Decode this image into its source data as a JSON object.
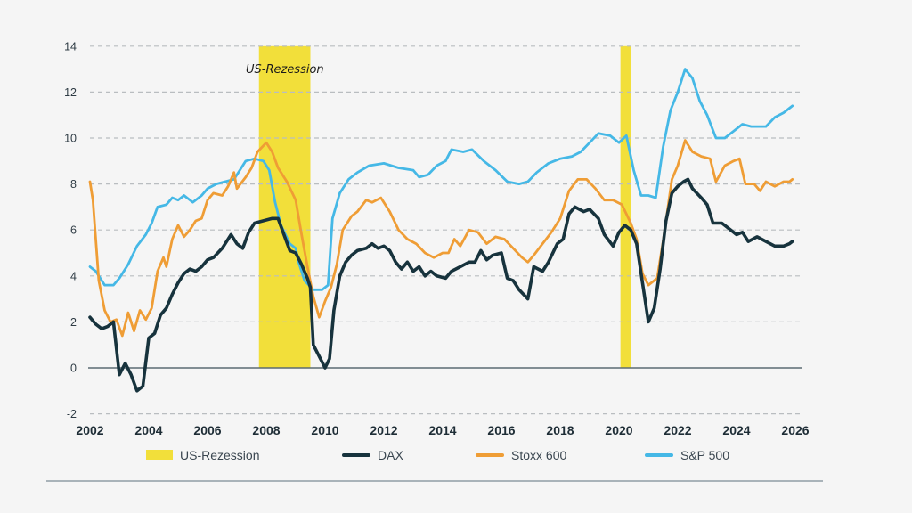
{
  "chart_data": {
    "type": "line",
    "title": "",
    "xlabel": "",
    "ylabel": "",
    "xlim": [
      2002,
      2026
    ],
    "ylim": [
      -2,
      14
    ],
    "x_ticks": [
      "2002",
      "2004",
      "2006",
      "2008",
      "2010",
      "2012",
      "2014",
      "2016",
      "2018",
      "2020",
      "2022",
      "2024",
      "2026"
    ],
    "y_ticks": [
      "-2",
      "0",
      "2",
      "4",
      "6",
      "8",
      "10",
      "12",
      "14"
    ],
    "grid": "horizontal-dashed",
    "annotation": "US-Rezession",
    "recessions": [
      {
        "start": 2007.75,
        "end": 2009.5
      },
      {
        "start": 2020.05,
        "end": 2020.4
      }
    ],
    "legend": {
      "placement": "bottom",
      "entries": [
        {
          "label": "US-Rezession",
          "color": "#f2df3a",
          "kind": "area"
        },
        {
          "label": "DAX",
          "color": "#17333d",
          "kind": "line"
        },
        {
          "label": "Stoxx 600",
          "color": "#ef9d35",
          "kind": "line"
        },
        {
          "label": "S&P 500",
          "color": "#45b8e6",
          "kind": "line"
        }
      ]
    },
    "series": [
      {
        "name": "S&P 500",
        "color": "#45b8e6",
        "points": [
          [
            2002.0,
            4.4
          ],
          [
            2002.2,
            4.2
          ],
          [
            2002.5,
            3.6
          ],
          [
            2002.8,
            3.6
          ],
          [
            2003.0,
            3.9
          ],
          [
            2003.3,
            4.5
          ],
          [
            2003.6,
            5.3
          ],
          [
            2003.9,
            5.8
          ],
          [
            2004.1,
            6.3
          ],
          [
            2004.3,
            7.0
          ],
          [
            2004.6,
            7.1
          ],
          [
            2004.8,
            7.4
          ],
          [
            2005.0,
            7.3
          ],
          [
            2005.2,
            7.5
          ],
          [
            2005.5,
            7.2
          ],
          [
            2005.8,
            7.5
          ],
          [
            2006.0,
            7.8
          ],
          [
            2006.3,
            8.0
          ],
          [
            2006.6,
            8.1
          ],
          [
            2006.9,
            8.2
          ],
          [
            2007.1,
            8.6
          ],
          [
            2007.3,
            9.0
          ],
          [
            2007.6,
            9.1
          ],
          [
            2007.9,
            9.0
          ],
          [
            2008.1,
            8.6
          ],
          [
            2008.3,
            7.2
          ],
          [
            2008.5,
            6.2
          ],
          [
            2008.8,
            5.4
          ],
          [
            2009.0,
            5.2
          ],
          [
            2009.1,
            4.6
          ],
          [
            2009.3,
            3.8
          ],
          [
            2009.6,
            3.4
          ],
          [
            2009.9,
            3.4
          ],
          [
            2010.1,
            3.6
          ],
          [
            2010.25,
            6.5
          ],
          [
            2010.5,
            7.6
          ],
          [
            2010.8,
            8.2
          ],
          [
            2011.1,
            8.5
          ],
          [
            2011.5,
            8.8
          ],
          [
            2012.0,
            8.9
          ],
          [
            2012.5,
            8.7
          ],
          [
            2013.0,
            8.6
          ],
          [
            2013.2,
            8.3
          ],
          [
            2013.5,
            8.4
          ],
          [
            2013.8,
            8.8
          ],
          [
            2014.1,
            9.0
          ],
          [
            2014.3,
            9.5
          ],
          [
            2014.7,
            9.4
          ],
          [
            2015.0,
            9.5
          ],
          [
            2015.4,
            9.0
          ],
          [
            2015.8,
            8.6
          ],
          [
            2016.2,
            8.1
          ],
          [
            2016.6,
            8.0
          ],
          [
            2016.9,
            8.1
          ],
          [
            2017.2,
            8.5
          ],
          [
            2017.6,
            8.9
          ],
          [
            2018.0,
            9.1
          ],
          [
            2018.4,
            9.2
          ],
          [
            2018.7,
            9.4
          ],
          [
            2019.0,
            9.8
          ],
          [
            2019.3,
            10.2
          ],
          [
            2019.7,
            10.1
          ],
          [
            2020.0,
            9.8
          ],
          [
            2020.25,
            10.1
          ],
          [
            2020.5,
            8.6
          ],
          [
            2020.75,
            7.5
          ],
          [
            2021.0,
            7.5
          ],
          [
            2021.25,
            7.4
          ],
          [
            2021.5,
            9.6
          ],
          [
            2021.75,
            11.2
          ],
          [
            2022.0,
            12.0
          ],
          [
            2022.25,
            13.0
          ],
          [
            2022.5,
            12.6
          ],
          [
            2022.75,
            11.6
          ],
          [
            2023.0,
            11.0
          ],
          [
            2023.3,
            10.0
          ],
          [
            2023.6,
            10.0
          ],
          [
            2023.9,
            10.3
          ],
          [
            2024.2,
            10.6
          ],
          [
            2024.5,
            10.5
          ],
          [
            2025.0,
            10.5
          ],
          [
            2025.3,
            10.9
          ],
          [
            2025.6,
            11.1
          ],
          [
            2025.9,
            11.4
          ]
        ]
      },
      {
        "name": "Stoxx 600",
        "color": "#ef9d35",
        "points": [
          [
            2002.0,
            8.1
          ],
          [
            2002.1,
            7.3
          ],
          [
            2002.3,
            3.8
          ],
          [
            2002.5,
            2.5
          ],
          [
            2002.7,
            2.0
          ],
          [
            2002.9,
            2.1
          ],
          [
            2003.1,
            1.4
          ],
          [
            2003.3,
            2.4
          ],
          [
            2003.5,
            1.6
          ],
          [
            2003.7,
            2.5
          ],
          [
            2003.9,
            2.1
          ],
          [
            2004.1,
            2.6
          ],
          [
            2004.3,
            4.2
          ],
          [
            2004.5,
            4.8
          ],
          [
            2004.6,
            4.4
          ],
          [
            2004.8,
            5.6
          ],
          [
            2005.0,
            6.2
          ],
          [
            2005.2,
            5.7
          ],
          [
            2005.4,
            6.0
          ],
          [
            2005.6,
            6.4
          ],
          [
            2005.8,
            6.5
          ],
          [
            2006.0,
            7.3
          ],
          [
            2006.2,
            7.6
          ],
          [
            2006.5,
            7.5
          ],
          [
            2006.7,
            7.9
          ],
          [
            2006.9,
            8.5
          ],
          [
            2007.0,
            7.8
          ],
          [
            2007.3,
            8.3
          ],
          [
            2007.5,
            8.7
          ],
          [
            2007.7,
            9.4
          ],
          [
            2008.0,
            9.8
          ],
          [
            2008.2,
            9.4
          ],
          [
            2008.4,
            8.7
          ],
          [
            2008.7,
            8.1
          ],
          [
            2009.0,
            7.3
          ],
          [
            2009.2,
            5.8
          ],
          [
            2009.4,
            4.4
          ],
          [
            2009.6,
            3.1
          ],
          [
            2009.8,
            2.2
          ],
          [
            2010.0,
            2.9
          ],
          [
            2010.2,
            3.5
          ],
          [
            2010.4,
            4.5
          ],
          [
            2010.6,
            6.0
          ],
          [
            2010.9,
            6.6
          ],
          [
            2011.1,
            6.8
          ],
          [
            2011.4,
            7.3
          ],
          [
            2011.6,
            7.2
          ],
          [
            2011.9,
            7.4
          ],
          [
            2012.2,
            6.8
          ],
          [
            2012.5,
            6.0
          ],
          [
            2012.8,
            5.6
          ],
          [
            2013.1,
            5.4
          ],
          [
            2013.4,
            5.0
          ],
          [
            2013.7,
            4.8
          ],
          [
            2014.0,
            5.0
          ],
          [
            2014.2,
            5.0
          ],
          [
            2014.4,
            5.6
          ],
          [
            2014.6,
            5.3
          ],
          [
            2014.9,
            6.0
          ],
          [
            2015.2,
            5.9
          ],
          [
            2015.5,
            5.4
          ],
          [
            2015.8,
            5.7
          ],
          [
            2016.1,
            5.6
          ],
          [
            2016.4,
            5.2
          ],
          [
            2016.7,
            4.8
          ],
          [
            2016.9,
            4.6
          ],
          [
            2017.1,
            4.9
          ],
          [
            2017.4,
            5.4
          ],
          [
            2017.7,
            5.9
          ],
          [
            2018.0,
            6.5
          ],
          [
            2018.3,
            7.7
          ],
          [
            2018.6,
            8.2
          ],
          [
            2018.9,
            8.2
          ],
          [
            2019.2,
            7.8
          ],
          [
            2019.5,
            7.3
          ],
          [
            2019.8,
            7.3
          ],
          [
            2020.1,
            7.1
          ],
          [
            2020.4,
            6.3
          ],
          [
            2020.6,
            5.6
          ],
          [
            2020.8,
            4.1
          ],
          [
            2021.0,
            3.6
          ],
          [
            2021.3,
            3.9
          ],
          [
            2021.5,
            5.5
          ],
          [
            2021.8,
            8.2
          ],
          [
            2022.0,
            8.8
          ],
          [
            2022.25,
            9.9
          ],
          [
            2022.5,
            9.4
          ],
          [
            2022.8,
            9.2
          ],
          [
            2023.1,
            9.1
          ],
          [
            2023.3,
            8.1
          ],
          [
            2023.6,
            8.8
          ],
          [
            2023.9,
            9.0
          ],
          [
            2024.1,
            9.1
          ],
          [
            2024.3,
            8.0
          ],
          [
            2024.6,
            8.0
          ],
          [
            2024.8,
            7.7
          ],
          [
            2025.0,
            8.1
          ],
          [
            2025.3,
            7.9
          ],
          [
            2025.6,
            8.1
          ],
          [
            2025.8,
            8.1
          ],
          [
            2025.9,
            8.2
          ]
        ]
      },
      {
        "name": "DAX",
        "color": "#17333d",
        "points": [
          [
            2002.0,
            2.2
          ],
          [
            2002.2,
            1.9
          ],
          [
            2002.4,
            1.7
          ],
          [
            2002.6,
            1.8
          ],
          [
            2002.8,
            2.0
          ],
          [
            2003.0,
            -0.3
          ],
          [
            2003.2,
            0.2
          ],
          [
            2003.4,
            -0.3
          ],
          [
            2003.6,
            -1.0
          ],
          [
            2003.8,
            -0.8
          ],
          [
            2004.0,
            1.3
          ],
          [
            2004.2,
            1.5
          ],
          [
            2004.4,
            2.3
          ],
          [
            2004.6,
            2.6
          ],
          [
            2004.8,
            3.2
          ],
          [
            2005.0,
            3.7
          ],
          [
            2005.2,
            4.1
          ],
          [
            2005.4,
            4.3
          ],
          [
            2005.6,
            4.2
          ],
          [
            2005.8,
            4.4
          ],
          [
            2006.0,
            4.7
          ],
          [
            2006.2,
            4.8
          ],
          [
            2006.5,
            5.2
          ],
          [
            2006.8,
            5.8
          ],
          [
            2007.0,
            5.4
          ],
          [
            2007.2,
            5.2
          ],
          [
            2007.4,
            5.9
          ],
          [
            2007.6,
            6.3
          ],
          [
            2007.9,
            6.4
          ],
          [
            2008.2,
            6.5
          ],
          [
            2008.4,
            6.5
          ],
          [
            2008.6,
            5.8
          ],
          [
            2008.8,
            5.1
          ],
          [
            2009.0,
            5.0
          ],
          [
            2009.2,
            4.5
          ],
          [
            2009.4,
            3.9
          ],
          [
            2009.5,
            3.5
          ],
          [
            2009.6,
            1.0
          ],
          [
            2009.8,
            0.5
          ],
          [
            2010.0,
            0.0
          ],
          [
            2010.15,
            0.4
          ],
          [
            2010.3,
            2.5
          ],
          [
            2010.5,
            4.0
          ],
          [
            2010.7,
            4.6
          ],
          [
            2010.9,
            4.9
          ],
          [
            2011.1,
            5.1
          ],
          [
            2011.4,
            5.2
          ],
          [
            2011.6,
            5.4
          ],
          [
            2011.8,
            5.2
          ],
          [
            2012.0,
            5.3
          ],
          [
            2012.2,
            5.1
          ],
          [
            2012.4,
            4.6
          ],
          [
            2012.6,
            4.3
          ],
          [
            2012.8,
            4.6
          ],
          [
            2013.0,
            4.2
          ],
          [
            2013.2,
            4.4
          ],
          [
            2013.4,
            4.0
          ],
          [
            2013.6,
            4.2
          ],
          [
            2013.8,
            4.0
          ],
          [
            2014.1,
            3.9
          ],
          [
            2014.3,
            4.2
          ],
          [
            2014.6,
            4.4
          ],
          [
            2014.9,
            4.6
          ],
          [
            2015.1,
            4.6
          ],
          [
            2015.3,
            5.1
          ],
          [
            2015.5,
            4.7
          ],
          [
            2015.7,
            4.9
          ],
          [
            2016.0,
            5.0
          ],
          [
            2016.2,
            3.9
          ],
          [
            2016.4,
            3.8
          ],
          [
            2016.6,
            3.4
          ],
          [
            2016.9,
            3.0
          ],
          [
            2017.1,
            4.4
          ],
          [
            2017.4,
            4.2
          ],
          [
            2017.6,
            4.6
          ],
          [
            2017.9,
            5.4
          ],
          [
            2018.1,
            5.6
          ],
          [
            2018.3,
            6.7
          ],
          [
            2018.5,
            7.0
          ],
          [
            2018.8,
            6.8
          ],
          [
            2019.0,
            6.9
          ],
          [
            2019.3,
            6.5
          ],
          [
            2019.5,
            5.8
          ],
          [
            2019.8,
            5.3
          ],
          [
            2020.0,
            5.9
          ],
          [
            2020.2,
            6.2
          ],
          [
            2020.4,
            6.0
          ],
          [
            2020.6,
            5.4
          ],
          [
            2020.8,
            3.7
          ],
          [
            2021.0,
            2.0
          ],
          [
            2021.2,
            2.6
          ],
          [
            2021.4,
            4.3
          ],
          [
            2021.6,
            6.4
          ],
          [
            2021.8,
            7.6
          ],
          [
            2022.0,
            7.9
          ],
          [
            2022.2,
            8.1
          ],
          [
            2022.35,
            8.2
          ],
          [
            2022.5,
            7.8
          ],
          [
            2022.8,
            7.4
          ],
          [
            2023.0,
            7.1
          ],
          [
            2023.2,
            6.3
          ],
          [
            2023.5,
            6.3
          ],
          [
            2023.8,
            6.0
          ],
          [
            2024.0,
            5.8
          ],
          [
            2024.2,
            5.9
          ],
          [
            2024.4,
            5.5
          ],
          [
            2024.7,
            5.7
          ],
          [
            2025.0,
            5.5
          ],
          [
            2025.3,
            5.3
          ],
          [
            2025.6,
            5.3
          ],
          [
            2025.8,
            5.4
          ],
          [
            2025.9,
            5.5
          ]
        ]
      }
    ]
  }
}
